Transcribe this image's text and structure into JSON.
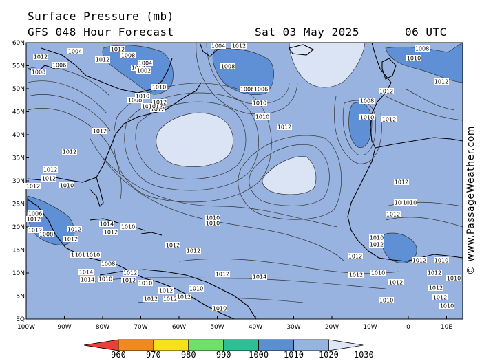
{
  "header": {
    "title": "Surface Pressure (mb)",
    "forecast": "GFS 048 Hour Forecast",
    "date": "Sat 03 May 2025",
    "time": "06 UTC"
  },
  "credit": "© www.PassageWeather.com",
  "lat_labels": [
    "60N",
    "55N",
    "50N",
    "45N",
    "40N",
    "35N",
    "30N",
    "25N",
    "20N",
    "15N",
    "10N",
    "5N",
    "EQ"
  ],
  "lon_labels": [
    "100W",
    "90W",
    "80W",
    "70W",
    "60W",
    "50W",
    "40W",
    "30W",
    "20W",
    "10W",
    "0",
    "10E"
  ],
  "colorbar": {
    "ticks": [
      "960",
      "970",
      "980",
      "990",
      "1000",
      "1010",
      "1020",
      "1030"
    ],
    "colors": [
      "#e8403a",
      "#f08a1e",
      "#f7e01c",
      "#6fe06a",
      "#2fbf95",
      "#5b8fd0",
      "#95b5e0",
      "#dfe7f6"
    ]
  },
  "map_colors": {
    "ocean": "#98b3df",
    "low": "#5f8fd4",
    "high": "#dbe4f5",
    "land_line": "#000000"
  },
  "isobar_labels": [
    "1012",
    "1004",
    "1012",
    "1008",
    "1012",
    "1006",
    "1008",
    "1012",
    "1010",
    "1004",
    "1002",
    "1012",
    "1008",
    "1008",
    "1012",
    "1010",
    "1012",
    "1008",
    "1006",
    "1006",
    "1004",
    "1012",
    "1008",
    "1012",
    "1010",
    "1012",
    "1012",
    "1012",
    "1012",
    "1012",
    "1010",
    "1012",
    "1008",
    "1010",
    "1010",
    "1012",
    "1010",
    "1012",
    "1014",
    "1012",
    "1014",
    "1010",
    "1014",
    "1012",
    "1012",
    "1010",
    "1012",
    "1012",
    "1012",
    "1014",
    "1012",
    "1012",
    "1010",
    "1006",
    "1012",
    "1012",
    "1008",
    "1012",
    "1010",
    "1012",
    "1012",
    "1012",
    "1010",
    "1008",
    "1012",
    "1012",
    "1012",
    "1012",
    "1010",
    "1010",
    "1010",
    "1010",
    "1012",
    "1008",
    "1010",
    "1012",
    "1010",
    "1012",
    "1012",
    "1012",
    "1010",
    "1010",
    "1012",
    "1012",
    "1010",
    "1012",
    "1010"
  ]
}
